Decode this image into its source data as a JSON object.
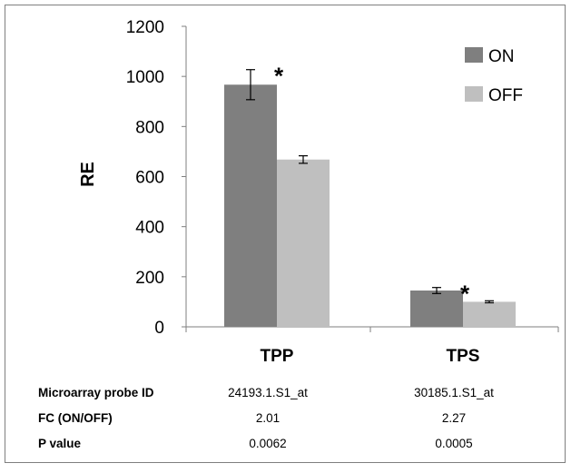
{
  "chart_data": {
    "type": "bar",
    "categories": [
      "TPP",
      "TPS"
    ],
    "ylabel": "RE",
    "ylim": [
      0,
      1200
    ],
    "yticks": [
      0,
      200,
      400,
      600,
      800,
      1000,
      1200
    ],
    "grid": false,
    "legend_position": "top-right",
    "series": [
      {
        "name": "ON",
        "color": "#7f7f7f",
        "values": [
          967,
          145
        ],
        "errors": [
          60,
          12
        ]
      },
      {
        "name": "OFF",
        "color": "#bfbfbf",
        "values": [
          668,
          100
        ],
        "errors": [
          15,
          4
        ]
      }
    ],
    "annotations": [
      {
        "text": "*",
        "category": "TPP",
        "series": "ON"
      },
      {
        "text": "*",
        "category": "TPS",
        "series": "ON"
      }
    ]
  },
  "table": {
    "rows": [
      {
        "label": "Microarray probe ID",
        "values": [
          "24193.1.S1_at",
          "30185.1.S1_at"
        ]
      },
      {
        "label": "FC (ON/OFF)",
        "values": [
          "2.01",
          "2.27"
        ]
      },
      {
        "label": "P value",
        "values": [
          "0.0062",
          "0.0005"
        ]
      }
    ]
  }
}
